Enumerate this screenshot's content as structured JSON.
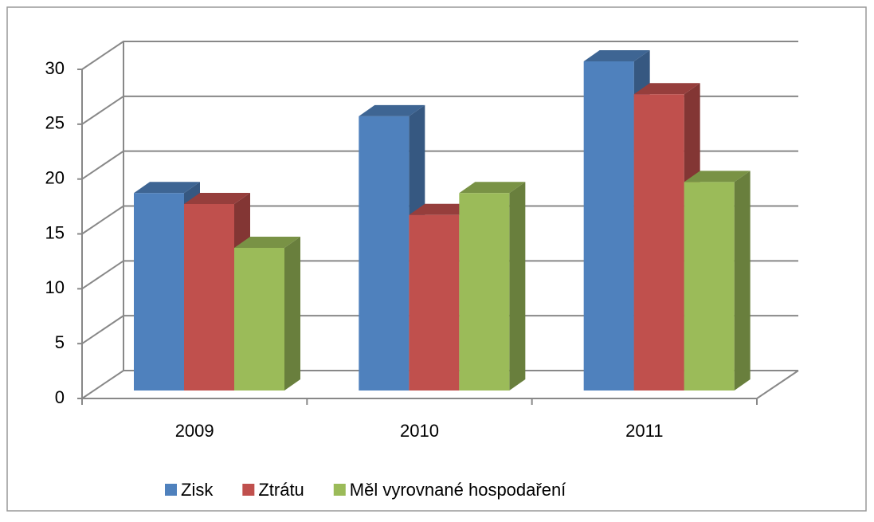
{
  "chart_data": {
    "type": "bar3d",
    "categories": [
      "2009",
      "2010",
      "2011"
    ],
    "series": [
      {
        "name": "Zisk",
        "color": "#4f81bd",
        "values": [
          18,
          25,
          30
        ]
      },
      {
        "name": "Ztrátu",
        "color": "#c0504d",
        "values": [
          17,
          16,
          27
        ]
      },
      {
        "name": "Měl vyrovnané hospodaření",
        "color": "#9bbb59",
        "values": [
          13,
          18,
          19
        ]
      }
    ],
    "ylim": [
      0,
      30
    ],
    "yticks": [
      0,
      5,
      10,
      15,
      20,
      25,
      30
    ],
    "grid": true,
    "legend": "bottom"
  }
}
